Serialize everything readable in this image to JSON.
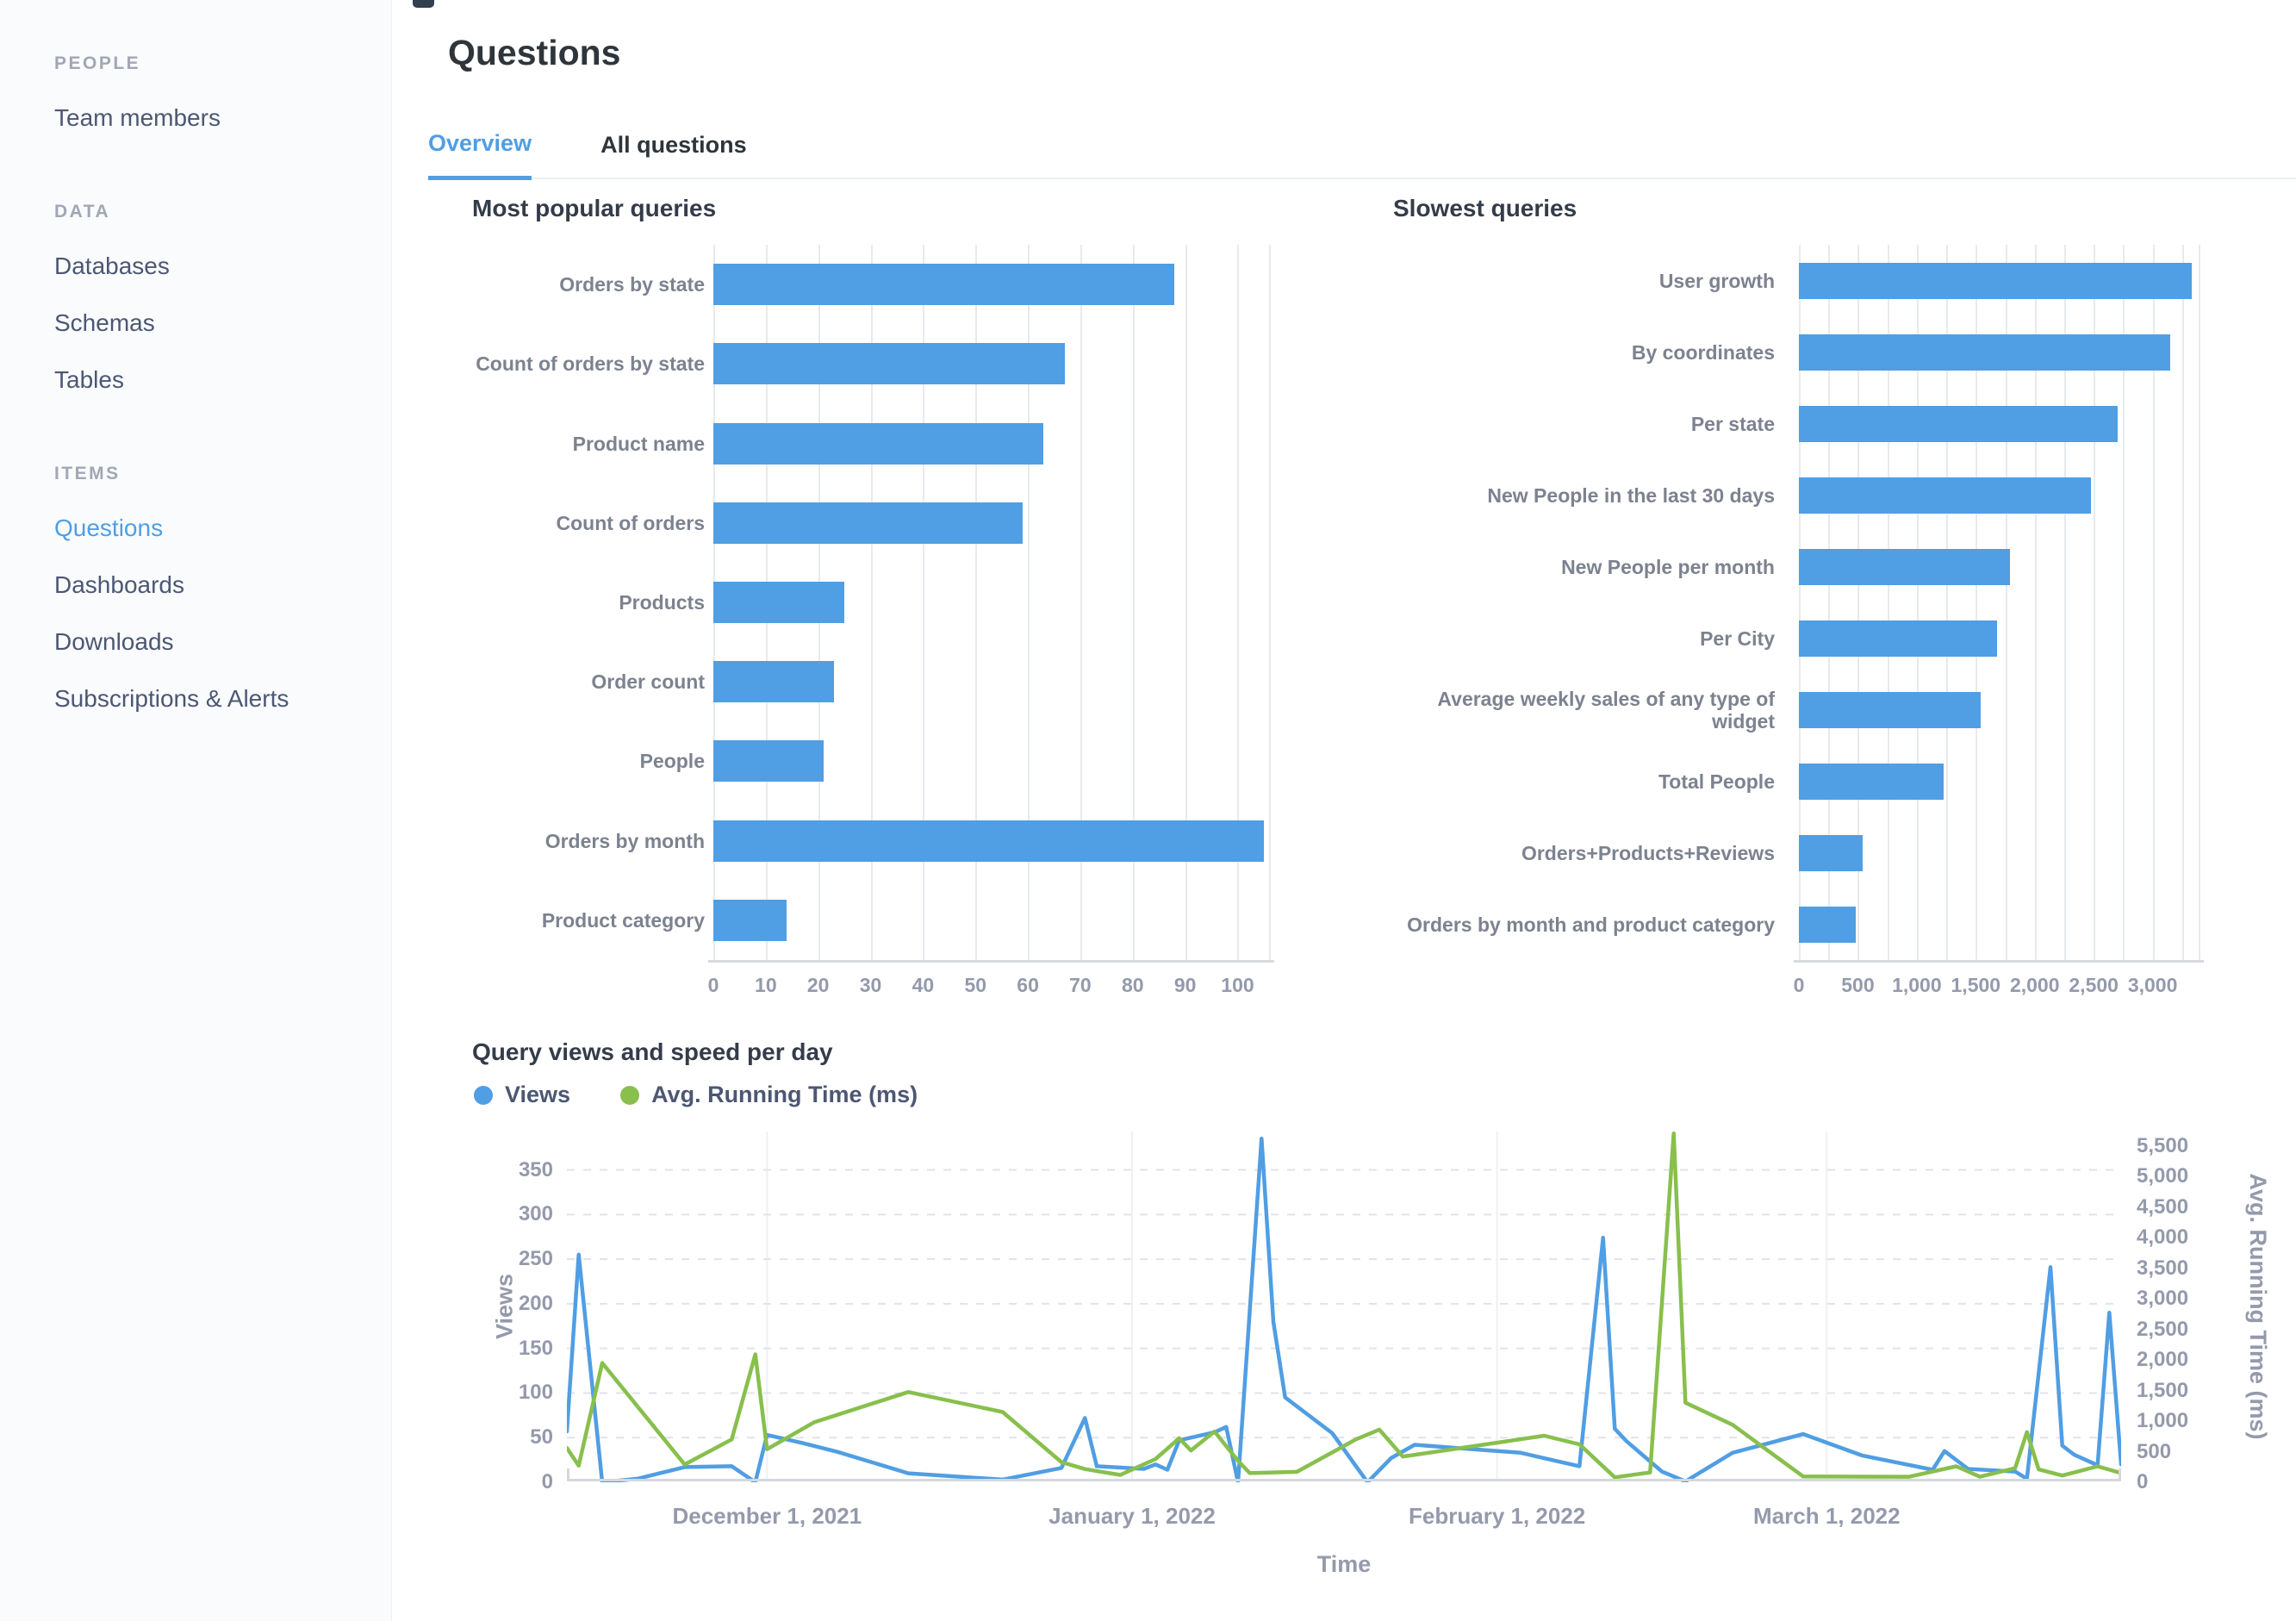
{
  "colors": {
    "accent_blue": "#509EE3",
    "series_green": "#88BF4D",
    "sidebar_bg": "#F9FBFC",
    "text_dark": "#2E353B",
    "text_medium": "#4C5773",
    "text_muted": "#949AAB"
  },
  "sidebar": {
    "sections": [
      {
        "title": "PEOPLE",
        "items": [
          {
            "label": "Team members",
            "active": false
          }
        ]
      },
      {
        "title": "DATA",
        "items": [
          {
            "label": "Databases",
            "active": false
          },
          {
            "label": "Schemas",
            "active": false
          },
          {
            "label": "Tables",
            "active": false
          }
        ]
      },
      {
        "title": "ITEMS",
        "items": [
          {
            "label": "Questions",
            "active": true
          },
          {
            "label": "Dashboards",
            "active": false
          },
          {
            "label": "Downloads",
            "active": false
          },
          {
            "label": "Subscriptions & Alerts",
            "active": false
          }
        ]
      }
    ]
  },
  "header": {
    "title": "Questions",
    "tabs": [
      {
        "label": "Overview",
        "active": true
      },
      {
        "label": "All questions",
        "active": false
      }
    ]
  },
  "chart_data": [
    {
      "type": "bar",
      "orientation": "horizontal",
      "title": "Most popular queries",
      "xlabel": "",
      "ylabel": "",
      "xlim": [
        0,
        106
      ],
      "grid_step": 10,
      "bar_color": "#509EE3",
      "categories": [
        "Orders by state",
        "Count of orders by state",
        "Product name",
        "Count of orders",
        "Products",
        "Order count",
        "People",
        "Orders by month",
        "Product category"
      ],
      "values": [
        88,
        67,
        63,
        59,
        25,
        23,
        21,
        105,
        14
      ],
      "x_tick_values": [
        0,
        10,
        20,
        30,
        40,
        50,
        60,
        70,
        80,
        90,
        100
      ],
      "x_tick_labels": [
        "0",
        "10",
        "20",
        "30",
        "40",
        "50",
        "60",
        "70",
        "80",
        "90",
        "100"
      ]
    },
    {
      "type": "bar",
      "orientation": "horizontal",
      "title": "Slowest queries",
      "xlabel": "",
      "ylabel": "",
      "xlim": [
        0,
        3390
      ],
      "grid_step": 250,
      "bar_color": "#509EE3",
      "categories": [
        "User growth",
        "By coordinates",
        "Per state",
        "New People in the last 30 days",
        "New People per month",
        "Per City",
        "Average weekly sales of any type of widget",
        "Total People",
        "Orders+Products+Reviews",
        "Orders by month and product category"
      ],
      "values": [
        3330,
        3150,
        2700,
        2480,
        1790,
        1680,
        1540,
        1230,
        540,
        480
      ],
      "x_tick_values": [
        0,
        500,
        1000,
        1500,
        2000,
        2500,
        3000
      ],
      "x_tick_labels": [
        "0",
        "500",
        "1,000",
        "1,500",
        "2,000",
        "2,500",
        "3,000"
      ]
    },
    {
      "type": "line",
      "title": "Query views and speed per day",
      "xlabel": "Time",
      "x_range_days": [
        0,
        132
      ],
      "x_tick_days": [
        17,
        48,
        79,
        107
      ],
      "x_tick_labels": [
        "December 1, 2021",
        "January 1, 2022",
        "February 1, 2022",
        "March 1, 2022"
      ],
      "left_axis": {
        "label": "Views",
        "max": 393,
        "tick_values": [
          0,
          50,
          100,
          150,
          200,
          250,
          300,
          350
        ],
        "tick_labels": [
          "0",
          "50",
          "100",
          "150",
          "200",
          "250",
          "300",
          "350"
        ]
      },
      "right_axis": {
        "label": "Avg. Running Time (ms)",
        "max": 5733,
        "tick_values": [
          0,
          500,
          1000,
          1500,
          2000,
          2500,
          3000,
          3500,
          4000,
          4500,
          5000,
          5500
        ],
        "tick_labels": [
          "0",
          "500",
          "1,000",
          "1,500",
          "2,000",
          "2,500",
          "3,000",
          "3,500",
          "4,000",
          "4,500",
          "5,000",
          "5,500"
        ]
      },
      "series": [
        {
          "name": "Views",
          "color": "#509EE3",
          "axis": "left",
          "points": [
            [
              0,
              57
            ],
            [
              1,
              255
            ],
            [
              3,
              0
            ],
            [
              6,
              4
            ],
            [
              10,
              17
            ],
            [
              14,
              18
            ],
            [
              16,
              0
            ],
            [
              17,
              53
            ],
            [
              20,
              44
            ],
            [
              23,
              34
            ],
            [
              29,
              10
            ],
            [
              37,
              3
            ],
            [
              42,
              16
            ],
            [
              44,
              72
            ],
            [
              45,
              18
            ],
            [
              49,
              15
            ],
            [
              50,
              20
            ],
            [
              51,
              14
            ],
            [
              52,
              47
            ],
            [
              55,
              56
            ],
            [
              56,
              62
            ],
            [
              57,
              0
            ],
            [
              59,
              385
            ],
            [
              60,
              180
            ],
            [
              61,
              95
            ],
            [
              65,
              55
            ],
            [
              68,
              0
            ],
            [
              70,
              27
            ],
            [
              72,
              42
            ],
            [
              77,
              37
            ],
            [
              81,
              33
            ],
            [
              86,
              18
            ],
            [
              88,
              274
            ],
            [
              89,
              60
            ],
            [
              90,
              46
            ],
            [
              93,
              12
            ],
            [
              95,
              1
            ],
            [
              99,
              33
            ],
            [
              105,
              54
            ],
            [
              110,
              30
            ],
            [
              116,
              14
            ],
            [
              117,
              35
            ],
            [
              119,
              15
            ],
            [
              123,
              12
            ],
            [
              124,
              4
            ],
            [
              126,
              241
            ],
            [
              127,
              41
            ],
            [
              128,
              31
            ],
            [
              130,
              19
            ],
            [
              131,
              190
            ],
            [
              132,
              20
            ]
          ]
        },
        {
          "name": "Avg. Running Time (ms)",
          "color": "#88BF4D",
          "axis": "right",
          "points": [
            [
              0,
              560
            ],
            [
              1,
              270
            ],
            [
              3,
              1950
            ],
            [
              10,
              290
            ],
            [
              14,
              700
            ],
            [
              16,
              2090
            ],
            [
              17,
              540
            ],
            [
              21,
              980
            ],
            [
              29,
              1475
            ],
            [
              37,
              1150
            ],
            [
              42,
              330
            ],
            [
              44,
              215
            ],
            [
              47,
              120
            ],
            [
              50,
              380
            ],
            [
              52,
              720
            ],
            [
              53,
              520
            ],
            [
              55,
              830
            ],
            [
              57,
              350
            ],
            [
              58,
              150
            ],
            [
              62,
              170
            ],
            [
              67,
              700
            ],
            [
              69,
              860
            ],
            [
              71,
              420
            ],
            [
              77,
              590
            ],
            [
              83,
              760
            ],
            [
              86,
              620
            ],
            [
              89,
              80
            ],
            [
              92,
              160
            ],
            [
              94,
              5700
            ],
            [
              95,
              1300
            ],
            [
              99,
              940
            ],
            [
              105,
              95
            ],
            [
              114,
              90
            ],
            [
              118,
              260
            ],
            [
              120,
              90
            ],
            [
              123,
              230
            ],
            [
              124,
              820
            ],
            [
              125,
              210
            ],
            [
              127,
              110
            ],
            [
              130,
              260
            ],
            [
              132,
              150
            ]
          ]
        }
      ]
    }
  ]
}
